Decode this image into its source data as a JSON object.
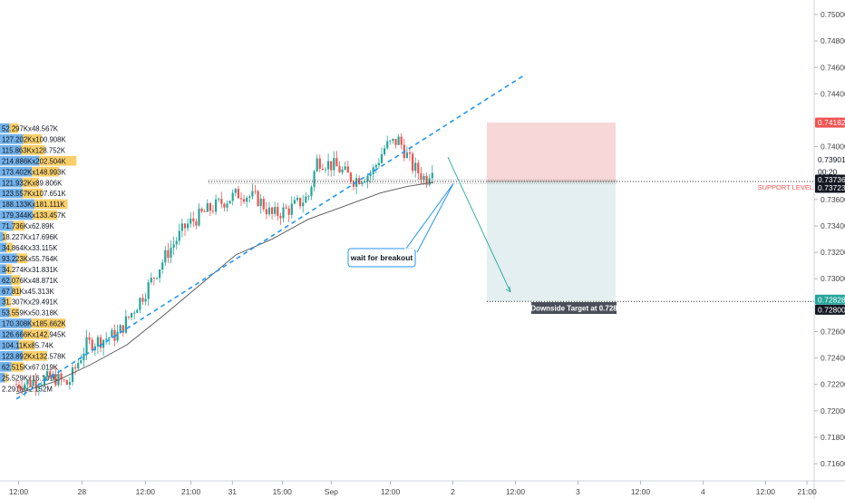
{
  "chart_data": {
    "type": "candlestick",
    "colors": {
      "up": "#26a69a",
      "down": "#ef5350",
      "trendline": "#2196f3",
      "moving_average": "#555555",
      "stop_zone": "#f7d7d7",
      "target_zone": "#e3eff1",
      "vol_buy": "#5ba4e6",
      "vol_sell": "#f9c74f",
      "label_dark": "#131722",
      "label_red": "#ef5350",
      "label_green": "#26a69a",
      "annotation_border": "#2196f3"
    },
    "y_axis": {
      "ticks": [
        "0.75000",
        "0.74800",
        "0.74600",
        "0.74400",
        "0.74000",
        "0.73600",
        "0.73400",
        "0.73200",
        "0.73000",
        "0.72600",
        "0.72400",
        "0.72200",
        "0.72000",
        "0.71800",
        "0.71600"
      ],
      "range": [
        0.7147,
        0.7511
      ]
    },
    "x_axis": {
      "ticks": [
        "12:00",
        "28",
        "12:00",
        "21:00",
        "31",
        "15:00",
        "Sep",
        "12:00",
        "2",
        "12:00",
        "3",
        "12:00",
        "4",
        "12:00",
        "21:00"
      ],
      "tick_x_norm": [
        0.022,
        0.097,
        0.172,
        0.226,
        0.275,
        0.334,
        0.392,
        0.462,
        0.536,
        0.61,
        0.684,
        0.758,
        0.832,
        0.906,
        0.955
      ]
    },
    "price_labels": [
      {
        "text": "0.74182",
        "value": 0.74182,
        "style": "red"
      },
      {
        "text": "0.73901",
        "value": 0.73901,
        "style": "light"
      },
      {
        "text": "00:20",
        "value": 0.73815,
        "style": "light"
      },
      {
        "text": "0.73736",
        "value": 0.73736,
        "style": "dark"
      },
      {
        "text": "0.73723",
        "value": 0.73723,
        "style": "dark"
      },
      {
        "text": "0.72828",
        "value": 0.72828,
        "style": "green"
      },
      {
        "text": "0.72800",
        "value": 0.728,
        "style": "dark"
      }
    ],
    "support_level": {
      "label": "SUPPORT LEVEL",
      "value": 0.73736
    },
    "trade_box": {
      "entry": 0.73736,
      "stop": 0.74182,
      "target": 0.72828
    },
    "target_label": "Downside Target at 0.728",
    "annotation": "wait for breakout",
    "volume_profile": [
      {
        "label": "52.297Kx48.567K",
        "buy": 52.297,
        "sell": 48.567
      },
      {
        "label": "127.202Kx100.908K",
        "buy": 127.202,
        "sell": 100.908
      },
      {
        "label": "115.863Kx128.752K",
        "buy": 115.863,
        "sell": 128.752
      },
      {
        "label": "214.886Kx202.504K",
        "buy": 214.886,
        "sell": 202.504
      },
      {
        "label": "173.402Kx148.993K",
        "buy": 173.402,
        "sell": 148.993
      },
      {
        "label": "121.932Kx89.806K",
        "buy": 121.932,
        "sell": 89.806
      },
      {
        "label": "123.557Kx107.651K",
        "buy": 123.557,
        "sell": 107.651
      },
      {
        "label": "188.133Kx181.111K",
        "buy": 188.133,
        "sell": 181.111
      },
      {
        "label": "179.344Kx133.457K",
        "buy": 179.344,
        "sell": 133.457
      },
      {
        "label": "71.736Kx62.89K",
        "buy": 71.736,
        "sell": 62.89
      },
      {
        "label": "18.227Kx17.696K",
        "buy": 18.227,
        "sell": 17.696
      },
      {
        "label": "34.864Kx33.115K",
        "buy": 34.864,
        "sell": 33.115
      },
      {
        "label": "93.223Kx55.764K",
        "buy": 93.223,
        "sell": 55.764
      },
      {
        "label": "34.274Kx31.831K",
        "buy": 34.274,
        "sell": 31.831
      },
      {
        "label": "62.076Kx48.871K",
        "buy": 62.076,
        "sell": 48.871
      },
      {
        "label": "67.81Kx45.313K",
        "buy": 67.81,
        "sell": 45.313
      },
      {
        "label": "31.307Kx29.491K",
        "buy": 31.307,
        "sell": 29.491
      },
      {
        "label": "53.559Kx50.318K",
        "buy": 53.559,
        "sell": 50.318
      },
      {
        "label": "170.308Kx185.662K",
        "buy": 170.308,
        "sell": 185.662
      },
      {
        "label": "126.666Kx142.945K",
        "buy": 126.666,
        "sell": 142.945
      },
      {
        "label": "104.11Kx85.74K",
        "buy": 104.11,
        "sell": 85.74
      },
      {
        "label": "123.892Kx132.578K",
        "buy": 123.892,
        "sell": 132.578
      },
      {
        "label": "62.515Kx67.019K",
        "buy": 62.515,
        "sell": 67.019
      },
      {
        "label": "25.529Kx16.101K",
        "buy": 25.529,
        "sell": 16.101
      },
      {
        "label": "2.291Mx2.152M",
        "buy": 2291,
        "sell": 2152
      }
    ]
  }
}
